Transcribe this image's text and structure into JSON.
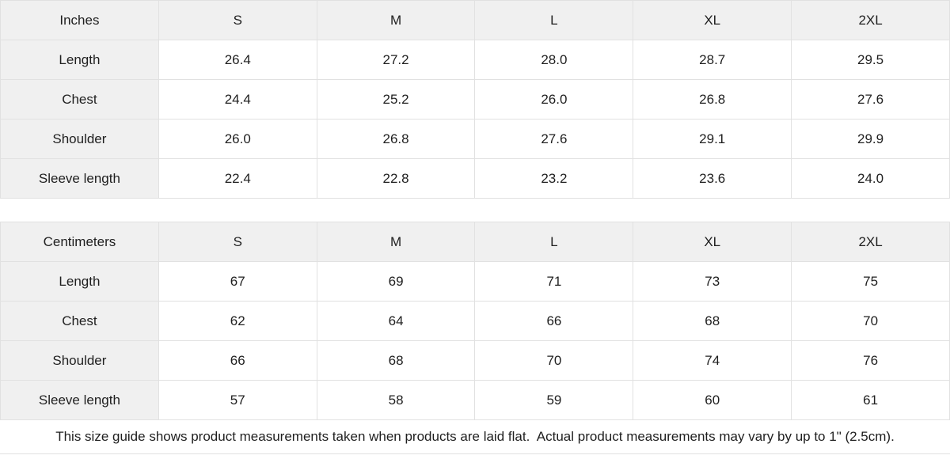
{
  "colors": {
    "header_bg": "#f0f0f0",
    "label_bg": "#f0f0f0",
    "cell_bg": "#ffffff",
    "border": "#e1e1e1",
    "text": "#1f1f1f"
  },
  "inches": {
    "unit_label": "Inches",
    "sizes": [
      "S",
      "M",
      "L",
      "XL",
      "2XL"
    ],
    "rows": [
      {
        "label": "Length",
        "values": [
          "26.4",
          "27.2",
          "28.0",
          "28.7",
          "29.5"
        ]
      },
      {
        "label": "Chest",
        "values": [
          "24.4",
          "25.2",
          "26.0",
          "26.8",
          "27.6"
        ]
      },
      {
        "label": "Shoulder",
        "values": [
          "26.0",
          "26.8",
          "27.6",
          "29.1",
          "29.9"
        ]
      },
      {
        "label": "Sleeve length",
        "values": [
          "22.4",
          "22.8",
          "23.2",
          "23.6",
          "24.0"
        ]
      }
    ]
  },
  "centimeters": {
    "unit_label": "Centimeters",
    "sizes": [
      "S",
      "M",
      "L",
      "XL",
      "2XL"
    ],
    "rows": [
      {
        "label": "Length",
        "values": [
          "67",
          "69",
          "71",
          "73",
          "75"
        ]
      },
      {
        "label": "Chest",
        "values": [
          "62",
          "64",
          "66",
          "68",
          "70"
        ]
      },
      {
        "label": "Shoulder",
        "values": [
          "66",
          "68",
          "70",
          "74",
          "76"
        ]
      },
      {
        "label": "Sleeve length",
        "values": [
          "57",
          "58",
          "59",
          "60",
          "61"
        ]
      }
    ]
  },
  "footer": {
    "note": "This size guide shows product measurements taken when products are laid flat.  Actual product measurements may vary by up to 1\" (2.5cm)."
  }
}
